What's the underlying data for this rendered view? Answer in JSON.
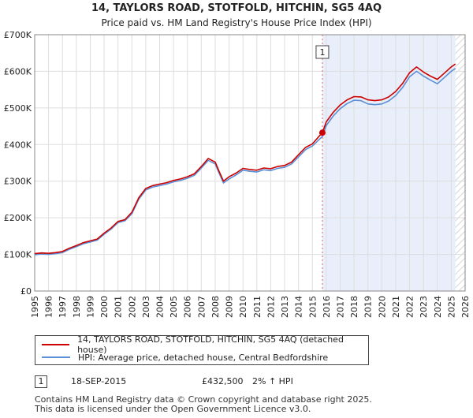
{
  "chart_data": {
    "type": "line",
    "title": "14, TAYLORS ROAD, STOTFOLD, HITCHIN, SG5 4AQ",
    "subtitle": "Price paid vs. HM Land Registry's House Price Index (HPI)",
    "xlim": [
      1995,
      2026
    ],
    "ylim": [
      0,
      700000
    ],
    "x_ticks": [
      "1995",
      "1996",
      "1997",
      "1998",
      "1999",
      "2000",
      "2001",
      "2002",
      "2003",
      "2004",
      "2005",
      "2006",
      "2007",
      "2008",
      "2009",
      "2010",
      "2011",
      "2012",
      "2013",
      "2014",
      "2015",
      "2016",
      "2017",
      "2018",
      "2019",
      "2020",
      "2021",
      "2022",
      "2023",
      "2024",
      "2025",
      "2026"
    ],
    "y_ticks": [
      {
        "value": 0,
        "label": "£0"
      },
      {
        "value": 100000,
        "label": "£100K"
      },
      {
        "value": 200000,
        "label": "£200K"
      },
      {
        "value": 300000,
        "label": "£300K"
      },
      {
        "value": 400000,
        "label": "£400K"
      },
      {
        "value": 500000,
        "label": "£500K"
      },
      {
        "value": 600000,
        "label": "£600K"
      },
      {
        "value": 700000,
        "label": "£700K"
      }
    ],
    "shaded_from": 2015.72,
    "future_from": 2025.3,
    "series": [
      {
        "name": "14, TAYLORS ROAD, STOTFOLD, HITCHIN, SG5 4AQ (detached house)",
        "color": "#cc0000",
        "points": [
          [
            1995,
            102000
          ],
          [
            1995.5,
            104000
          ],
          [
            1996,
            103000
          ],
          [
            1996.5,
            105000
          ],
          [
            1997,
            108000
          ],
          [
            1997.5,
            117000
          ],
          [
            1998,
            124000
          ],
          [
            1998.5,
            132000
          ],
          [
            1999,
            137000
          ],
          [
            1999.5,
            142000
          ],
          [
            2000,
            158000
          ],
          [
            2000.5,
            172000
          ],
          [
            2001,
            190000
          ],
          [
            2001.5,
            195000
          ],
          [
            2002,
            215000
          ],
          [
            2002.5,
            255000
          ],
          [
            2003,
            280000
          ],
          [
            2003.5,
            288000
          ],
          [
            2004,
            292000
          ],
          [
            2004.5,
            296000
          ],
          [
            2005,
            302000
          ],
          [
            2005.5,
            306000
          ],
          [
            2006,
            312000
          ],
          [
            2006.5,
            320000
          ],
          [
            2007,
            340000
          ],
          [
            2007.5,
            362000
          ],
          [
            2008,
            352000
          ],
          [
            2008.3,
            325000
          ],
          [
            2008.6,
            300000
          ],
          [
            2009,
            312000
          ],
          [
            2009.5,
            322000
          ],
          [
            2010,
            335000
          ],
          [
            2010.5,
            332000
          ],
          [
            2011,
            330000
          ],
          [
            2011.5,
            336000
          ],
          [
            2012,
            334000
          ],
          [
            2012.5,
            340000
          ],
          [
            2013,
            343000
          ],
          [
            2013.5,
            352000
          ],
          [
            2014,
            372000
          ],
          [
            2014.5,
            392000
          ],
          [
            2015,
            402000
          ],
          [
            2015.72,
            432500
          ],
          [
            2016,
            462000
          ],
          [
            2016.5,
            488000
          ],
          [
            2017,
            508000
          ],
          [
            2017.5,
            522000
          ],
          [
            2018,
            531000
          ],
          [
            2018.5,
            530000
          ],
          [
            2019,
            522000
          ],
          [
            2019.5,
            520000
          ],
          [
            2020,
            522000
          ],
          [
            2020.5,
            530000
          ],
          [
            2021,
            545000
          ],
          [
            2021.5,
            567000
          ],
          [
            2022,
            596000
          ],
          [
            2022.5,
            612000
          ],
          [
            2023,
            598000
          ],
          [
            2023.5,
            587000
          ],
          [
            2024,
            578000
          ],
          [
            2024.5,
            595000
          ],
          [
            2025,
            612000
          ],
          [
            2025.3,
            620000
          ]
        ]
      },
      {
        "name": "HPI: Average price, detached house, Central Bedfordshire",
        "color": "#5b8fd6",
        "points": [
          [
            1995,
            99000
          ],
          [
            1995.5,
            101000
          ],
          [
            1996,
            100000
          ],
          [
            1996.5,
            102000
          ],
          [
            1997,
            105000
          ],
          [
            1997.5,
            114000
          ],
          [
            1998,
            121000
          ],
          [
            1998.5,
            129000
          ],
          [
            1999,
            134000
          ],
          [
            1999.5,
            139000
          ],
          [
            2000,
            155000
          ],
          [
            2000.5,
            169000
          ],
          [
            2001,
            187000
          ],
          [
            2001.5,
            192000
          ],
          [
            2002,
            211000
          ],
          [
            2002.5,
            251000
          ],
          [
            2003,
            276000
          ],
          [
            2003.5,
            284000
          ],
          [
            2004,
            288000
          ],
          [
            2004.5,
            292000
          ],
          [
            2005,
            298000
          ],
          [
            2005.5,
            302000
          ],
          [
            2006,
            308000
          ],
          [
            2006.5,
            316000
          ],
          [
            2007,
            336000
          ],
          [
            2007.5,
            357000
          ],
          [
            2008,
            347000
          ],
          [
            2008.3,
            320000
          ],
          [
            2008.6,
            295000
          ],
          [
            2009,
            306000
          ],
          [
            2009.5,
            317000
          ],
          [
            2010,
            330000
          ],
          [
            2010.5,
            327000
          ],
          [
            2011,
            325000
          ],
          [
            2011.5,
            331000
          ],
          [
            2012,
            329000
          ],
          [
            2012.5,
            335000
          ],
          [
            2013,
            338000
          ],
          [
            2013.5,
            347000
          ],
          [
            2014,
            366000
          ],
          [
            2014.5,
            386000
          ],
          [
            2015,
            396000
          ],
          [
            2015.72,
            422000
          ],
          [
            2016,
            452000
          ],
          [
            2016.5,
            478000
          ],
          [
            2017,
            498000
          ],
          [
            2017.5,
            512000
          ],
          [
            2018,
            521000
          ],
          [
            2018.5,
            520000
          ],
          [
            2019,
            511000
          ],
          [
            2019.5,
            509000
          ],
          [
            2020,
            511000
          ],
          [
            2020.5,
            519000
          ],
          [
            2021,
            534000
          ],
          [
            2021.5,
            556000
          ],
          [
            2022,
            585000
          ],
          [
            2022.5,
            600000
          ],
          [
            2023,
            587000
          ],
          [
            2023.5,
            576000
          ],
          [
            2024,
            566000
          ],
          [
            2024.5,
            583000
          ],
          [
            2025,
            600000
          ],
          [
            2025.3,
            608000
          ]
        ]
      }
    ],
    "sales": [
      {
        "marker": "1",
        "x": 2015.72,
        "value": 432500
      }
    ]
  },
  "legend": {
    "property_label": "14, TAYLORS ROAD, STOTFOLD, HITCHIN, SG5 4AQ (detached house)",
    "hpi_label": "HPI: Average price, detached house, Central Bedfordshire"
  },
  "sale": {
    "marker": "1",
    "date": "18-SEP-2015",
    "price": "£432,500",
    "hpi_change": "2% ↑ HPI"
  },
  "footer": {
    "line1": "Contains HM Land Registry data © Crown copyright and database right 2025.",
    "line2": "This data is licensed under the Open Government Licence v3.0."
  }
}
